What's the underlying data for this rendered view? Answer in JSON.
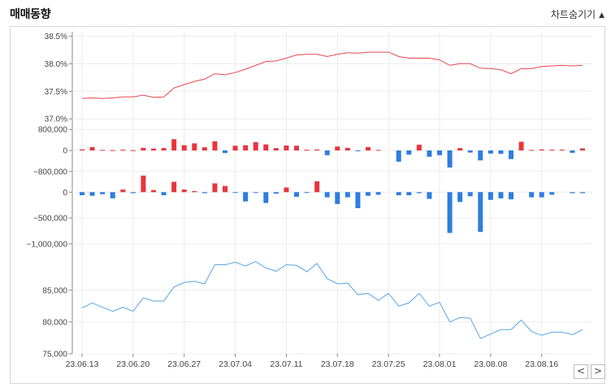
{
  "header": {
    "title": "매매동향",
    "toggle_label": "차트숨기기",
    "toggle_icon": "triangle-up-icon"
  },
  "nav": {
    "prev_icon": "chevron-left-icon",
    "next_icon": "chevron-right-icon",
    "prev_label": "<",
    "next_label": ">"
  },
  "chart_data": {
    "type": "line+bar",
    "x_labels": [
      "23.06.13",
      "23.06.20",
      "23.06.27",
      "23.07.04",
      "23.07.11",
      "23.07.18",
      "23.07.25",
      "23.08.01",
      "23.08.08",
      "23.08.16"
    ],
    "x_label_index": [
      0,
      5,
      10,
      15,
      20,
      25,
      30,
      35,
      40,
      45
    ],
    "colors": {
      "ratio": "#e8474c",
      "pos": "#e8353d",
      "neg": "#2e7de1",
      "price": "#5aa6e6",
      "grid": "#ececec"
    },
    "panels": [
      {
        "name": "foreign-ratio",
        "type": "line",
        "ticks": [
          "38.5%",
          "38.0%",
          "37.5%",
          "37.0%"
        ],
        "tick_values": [
          38.5,
          38.0,
          37.5,
          37.0
        ],
        "ylim": [
          36.9,
          38.55
        ],
        "values": [
          37.37,
          37.38,
          37.37,
          37.38,
          37.4,
          37.4,
          37.43,
          37.39,
          37.4,
          37.56,
          37.62,
          37.68,
          37.72,
          37.82,
          37.8,
          37.84,
          37.9,
          37.97,
          38.04,
          38.05,
          38.1,
          38.16,
          38.17,
          38.17,
          38.13,
          38.17,
          38.2,
          38.19,
          38.21,
          38.21,
          38.21,
          38.13,
          38.1,
          38.1,
          38.1,
          38.07,
          37.97,
          38.0,
          38.0,
          37.92,
          37.91,
          37.89,
          37.82,
          37.91,
          37.91,
          37.95,
          37.96,
          37.97,
          37.96,
          37.97
        ]
      },
      {
        "name": "foreign-net-buy",
        "type": "bar",
        "ticks": [
          "800,000",
          "0",
          "−800,000"
        ],
        "tick_values": [
          800000,
          0,
          -800000
        ],
        "ylim": [
          -900000,
          900000
        ],
        "values": [
          40000,
          130000,
          20000,
          10000,
          30000,
          10000,
          100000,
          70000,
          90000,
          430000,
          200000,
          270000,
          120000,
          350000,
          -100000,
          180000,
          200000,
          320000,
          230000,
          90000,
          190000,
          180000,
          30000,
          40000,
          -180000,
          150000,
          100000,
          -30000,
          130000,
          20000,
          0,
          -430000,
          -160000,
          220000,
          -240000,
          -180000,
          -650000,
          90000,
          -80000,
          -380000,
          -120000,
          -130000,
          -330000,
          330000,
          20000,
          40000,
          30000,
          30000,
          -90000,
          80000
        ]
      },
      {
        "name": "institution-net-buy",
        "type": "bar",
        "ticks": [
          "0",
          "−500,000",
          "−1,000,000"
        ],
        "tick_values": [
          0,
          -500000,
          -1000000
        ],
        "ylim": [
          -1050000,
          350000
        ],
        "values": [
          -60000,
          -70000,
          -40000,
          -120000,
          50000,
          -20000,
          320000,
          40000,
          -60000,
          200000,
          50000,
          20000,
          -20000,
          170000,
          120000,
          -10000,
          -180000,
          -10000,
          -210000,
          -30000,
          90000,
          -90000,
          -10000,
          210000,
          -100000,
          -230000,
          -100000,
          -310000,
          -70000,
          -50000,
          0,
          -60000,
          -60000,
          -20000,
          -130000,
          0,
          -790000,
          -190000,
          -80000,
          -770000,
          -150000,
          -120000,
          -140000,
          0,
          -100000,
          -100000,
          -50000,
          0,
          -20000,
          -20000
        ]
      },
      {
        "name": "close-price",
        "type": "line",
        "ticks": [
          "85,000",
          "80,000",
          "75,000"
        ],
        "tick_values": [
          85000,
          80000,
          75000
        ],
        "ylim": [
          75000,
          91500
        ],
        "values": [
          82200,
          83000,
          82300,
          81700,
          82300,
          81700,
          83800,
          83300,
          83300,
          85500,
          86200,
          86400,
          86000,
          89000,
          89000,
          89400,
          88800,
          89500,
          88500,
          88000,
          89000,
          88900,
          87900,
          89200,
          86800,
          86000,
          86100,
          84300,
          84500,
          83400,
          84500,
          82500,
          83000,
          84500,
          82500,
          83100,
          80000,
          80700,
          80600,
          77400,
          78100,
          78800,
          78800,
          80300,
          78500,
          77900,
          78400,
          78400,
          78000,
          78800
        ]
      }
    ]
  }
}
